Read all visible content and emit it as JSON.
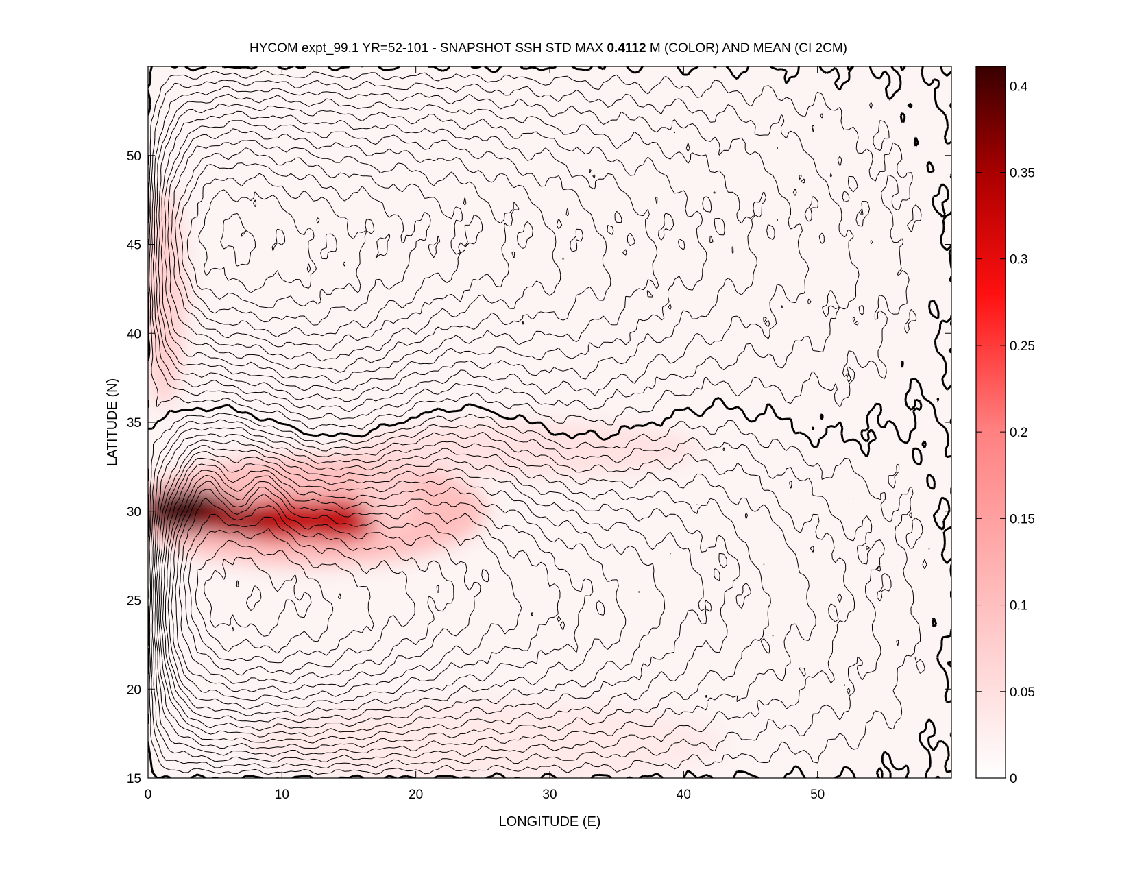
{
  "chart_data": {
    "type": "heatmap",
    "title_parts": [
      "HYCOM expt_99.1 YR=52-101 - SNAPSHOT SSH STD MAX ",
      "0.4112",
      " M (COLOR) AND MEAN (CI 2CM)"
    ],
    "xlabel": "LONGITUDE (E)",
    "ylabel": "LATITUDE (N)",
    "xlim": [
      0,
      60
    ],
    "ylim": [
      15,
      55
    ],
    "xticks": [
      0,
      10,
      20,
      30,
      40,
      50
    ],
    "yticks": [
      15,
      20,
      25,
      30,
      35,
      40,
      45,
      50
    ],
    "colorbar": {
      "clim": [
        0,
        0.4112
      ],
      "ticks": [
        0,
        0.05,
        0.1,
        0.15,
        0.2,
        0.25,
        0.3,
        0.35,
        0.4
      ],
      "tick_labels": [
        "0",
        "0.05",
        "0.1",
        "0.15",
        "0.2",
        "0.25",
        "0.3",
        "0.35",
        "0.4"
      ],
      "colors": [
        "#ffffff",
        "#ffc0c0",
        "#ff8080",
        "#ff2020",
        "#c00000",
        "#3a0000"
      ]
    },
    "max_std_m": 0.4112,
    "contour_interval_cm": 2,
    "zero_contour_lat_east": 35,
    "high_variability_regions": [
      {
        "lon": 3,
        "lat": 30,
        "std": 0.41
      },
      {
        "lon": 10,
        "lat": 29.5,
        "std": 0.3
      },
      {
        "lon": 14,
        "lat": 29.5,
        "std": 0.28
      },
      {
        "lon": 1,
        "lat": 42,
        "std": 0.08
      },
      {
        "lon": 18,
        "lat": 31,
        "std": 0.08
      }
    ]
  }
}
